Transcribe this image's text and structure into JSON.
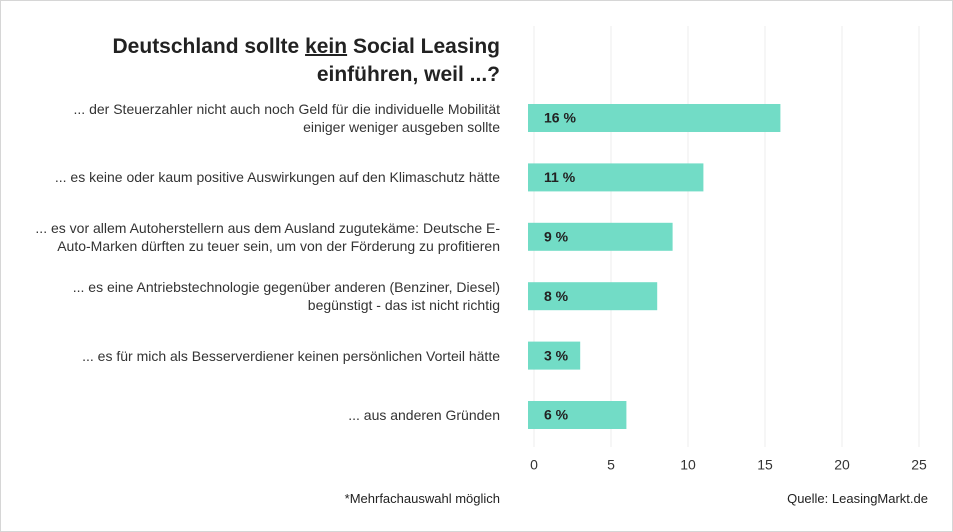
{
  "chart_data": {
    "type": "bar",
    "orientation": "horizontal",
    "title": {
      "before": "Deutschland sollte",
      "underlined": "kein",
      "after": "Social Leasing einführen, weil ...?"
    },
    "categories": [
      "... der Steuerzahler nicht auch noch Geld für die individuelle Mobilität einiger weniger ausgeben sollte",
      "... es keine oder kaum positive Auswirkungen auf den Klimaschutz hätte",
      "... es vor allem Autoherstellern aus dem Ausland zugutekäme: Deutsche E-Auto-Marken dürften zu teuer sein, um von der Förderung zu profitieren",
      "... es eine Antriebstechnologie gegenüber anderen (Benziner, Diesel) begünstigt - das ist nicht richtig",
      "... es für mich als Besserverdiener keinen persönlichen Vorteil hätte",
      "... aus anderen Gründen"
    ],
    "values": [
      16,
      11,
      9,
      8,
      3,
      6
    ],
    "value_labels": [
      "16 %",
      "11 %",
      "9 %",
      "8 %",
      "3 %",
      "6 %"
    ],
    "color": "#72dcc6",
    "xlim": [
      0,
      25
    ],
    "xticks": [
      0,
      5,
      10,
      15,
      20,
      25
    ],
    "grid": true,
    "footnote": "*Mehrfachauswahl möglich",
    "source": "Quelle: LeasingMarkt.de"
  }
}
